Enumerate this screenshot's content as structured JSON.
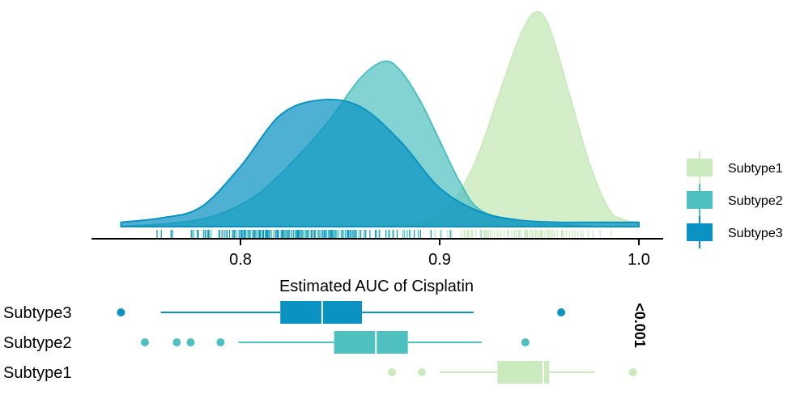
{
  "chart_data": {
    "type": "density-rug-boxplot",
    "xlabel": "Estimated AUC of Cisplatin",
    "x_ticks": [
      0.8,
      0.9,
      1.0
    ],
    "x_tick_labels": [
      "0.8",
      "0.9",
      "1.0"
    ],
    "xlim": [
      0.73,
      1.012
    ],
    "pvalue": "<0.001",
    "legend_position": "right",
    "series": [
      {
        "name": "Subtype1",
        "color": "#CBEBBE",
        "density_x": [
          0.87,
          0.89,
          0.9,
          0.91,
          0.92,
          0.93,
          0.94,
          0.948,
          0.955,
          0.965,
          0.975,
          0.985,
          0.993,
          1.0
        ],
        "density_y": [
          0.0,
          0.02,
          0.06,
          0.16,
          0.35,
          0.62,
          0.88,
          1.0,
          0.93,
          0.62,
          0.3,
          0.08,
          0.03,
          0.02
        ],
        "box": {
          "q1": 0.929,
          "median": 0.952,
          "q3": 0.955,
          "whisker_low": 0.9,
          "whisker_high": 0.978,
          "outliers": [
            0.876,
            0.891,
            0.997
          ]
        }
      },
      {
        "name": "Subtype2",
        "color": "#4FC0C0",
        "density_x": [
          0.74,
          0.77,
          0.79,
          0.81,
          0.83,
          0.845,
          0.86,
          0.872,
          0.88,
          0.89,
          0.9,
          0.91,
          0.92,
          0.94,
          0.96,
          0.98,
          1.0
        ],
        "density_y": [
          0.0,
          0.02,
          0.06,
          0.16,
          0.34,
          0.5,
          0.69,
          0.77,
          0.73,
          0.59,
          0.4,
          0.21,
          0.08,
          0.02,
          0.01,
          0.0,
          0.0
        ],
        "box": {
          "q1": 0.847,
          "median": 0.868,
          "q3": 0.884,
          "whisker_low": 0.799,
          "whisker_high": 0.921,
          "outliers": [
            0.752,
            0.768,
            0.775,
            0.79,
            0.943
          ]
        }
      },
      {
        "name": "Subtype3",
        "color": "#0A93C2",
        "density_x": [
          0.74,
          0.76,
          0.78,
          0.8,
          0.82,
          0.84,
          0.86,
          0.88,
          0.9,
          0.92,
          0.94,
          0.96,
          0.98,
          1.0
        ],
        "density_y": [
          0.02,
          0.04,
          0.09,
          0.28,
          0.52,
          0.59,
          0.56,
          0.4,
          0.18,
          0.07,
          0.03,
          0.02,
          0.02,
          0.02
        ],
        "box": {
          "q1": 0.82,
          "median": 0.841,
          "q3": 0.861,
          "whisker_low": 0.76,
          "whisker_high": 0.917,
          "outliers": [
            0.74,
            0.961
          ]
        }
      }
    ]
  }
}
